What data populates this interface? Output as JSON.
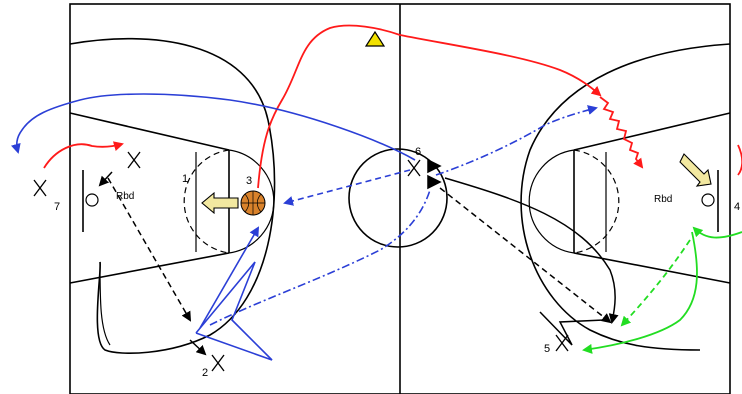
{
  "colors": {
    "court": "#000000",
    "red": "#ff1a1a",
    "blue": "#2b3fd6",
    "green": "#22dd22",
    "ball": "#d9822b",
    "cone": "#f2e100"
  },
  "icons": [
    "basketball-icon",
    "triangle-cone-icon",
    "block-arrow-icon"
  ],
  "players": {
    "p1": "1",
    "p2": "2",
    "p3": "3",
    "p4": "4",
    "p5": "5",
    "p6": "6",
    "p7": "7"
  },
  "rebound_left": "Rbd",
  "rebound_right": "Rbd"
}
